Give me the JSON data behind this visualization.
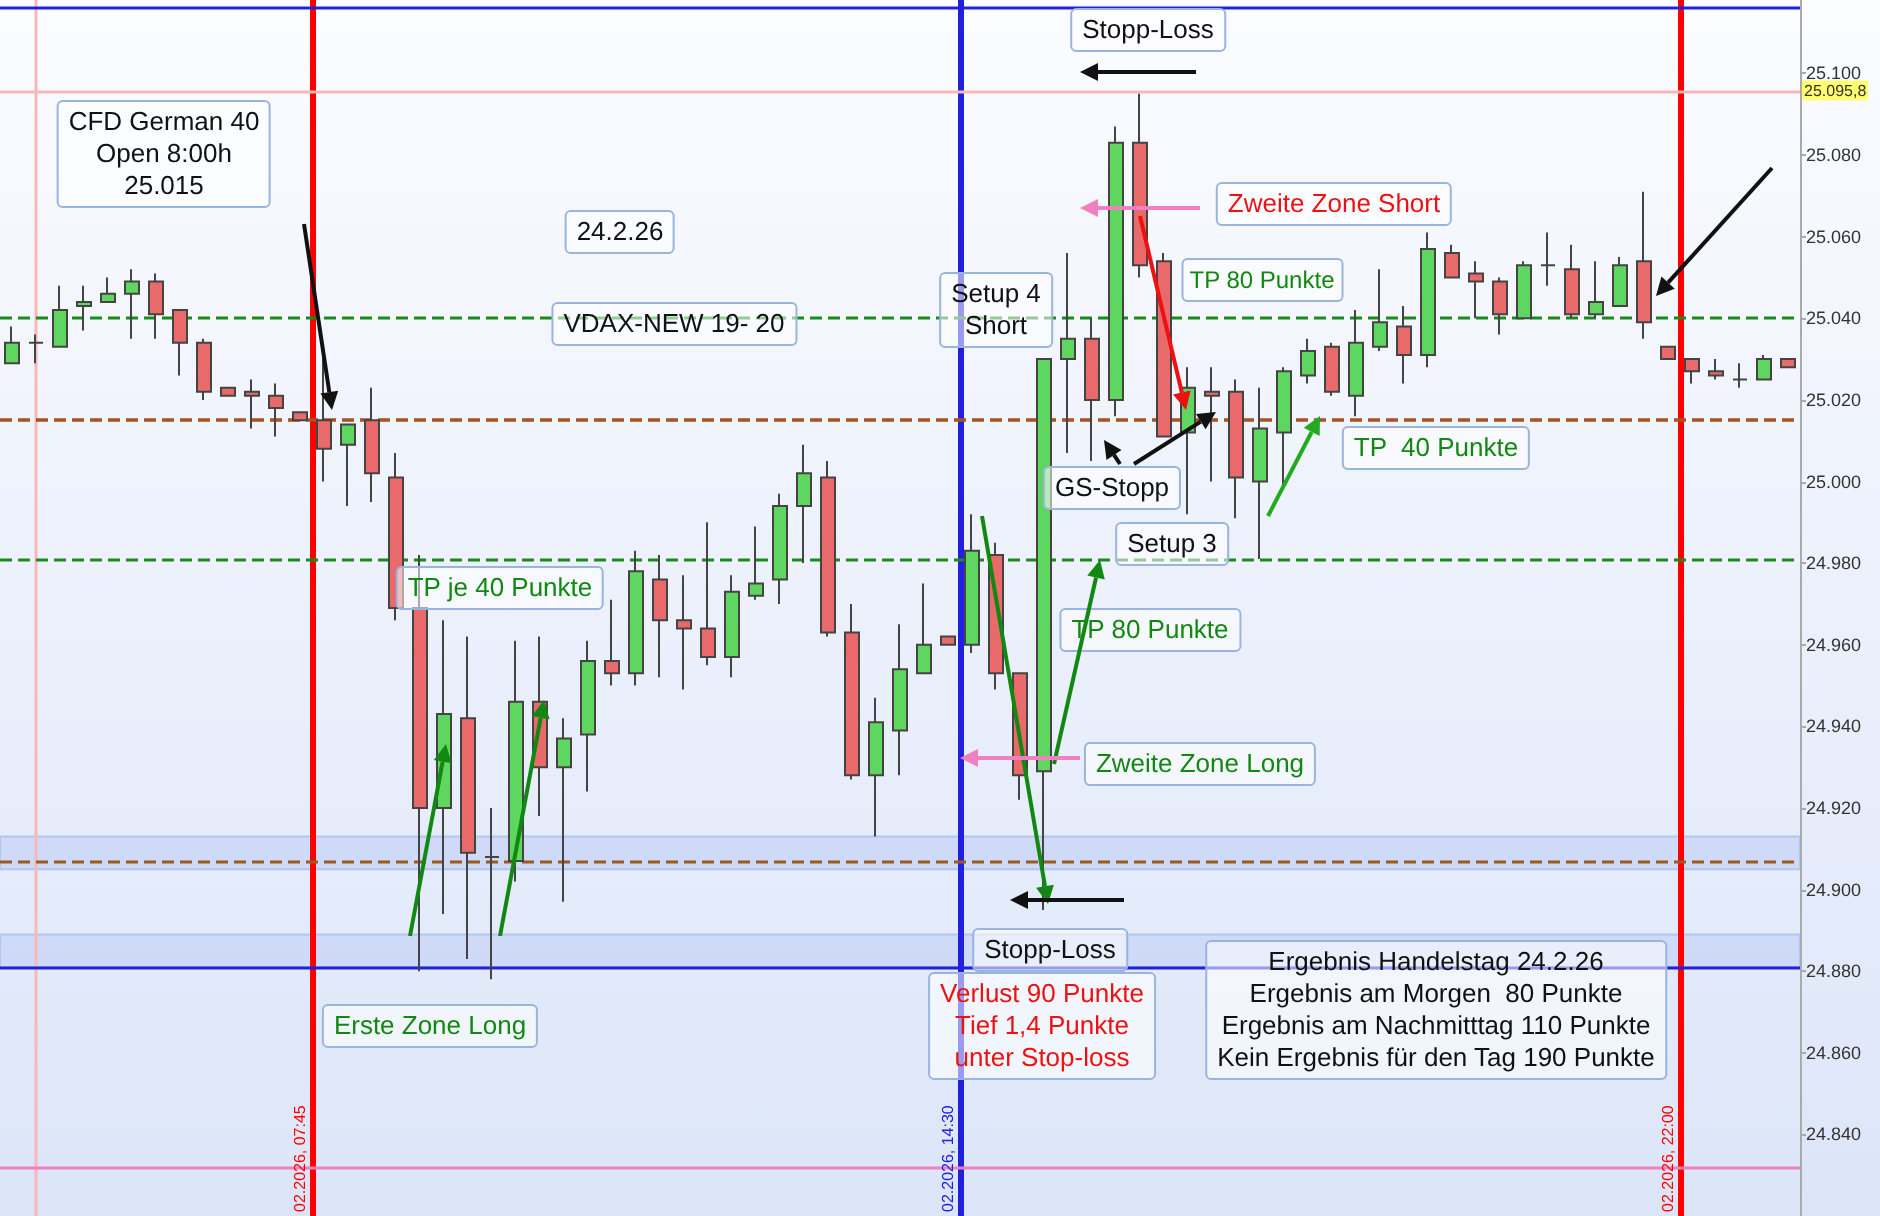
{
  "chart_data": {
    "type": "candlestick",
    "categories": [
      null,
      null,
      null,
      null,
      null,
      null,
      null,
      null,
      null,
      null,
      null,
      null,
      null,
      null,
      null,
      null,
      null,
      null,
      null,
      null,
      null,
      null,
      null,
      null,
      null,
      null,
      null,
      null,
      null,
      null,
      null,
      null,
      null,
      null,
      null,
      null,
      null,
      null,
      null,
      null,
      null,
      null,
      null,
      null,
      null,
      null,
      null,
      null,
      null,
      null,
      null,
      null,
      null,
      null,
      null,
      null,
      null,
      null,
      null,
      null,
      null,
      null,
      null,
      null,
      null,
      null,
      null,
      null,
      null,
      null,
      null,
      null,
      null,
      null,
      null
    ],
    "ohlc": [
      [
        25029,
        25038,
        25029,
        25034
      ],
      [
        25034,
        25036,
        25029,
        25034
      ],
      [
        25033,
        25048,
        25033,
        25042
      ],
      [
        25043,
        25048,
        25037,
        25044
      ],
      [
        25044,
        25050,
        25044,
        25046
      ],
      [
        25046,
        25052,
        25035,
        25049
      ],
      [
        25049,
        25051,
        25035,
        25041
      ],
      [
        25042,
        25042,
        25026,
        25034
      ],
      [
        25034,
        25035,
        25020,
        25022
      ],
      [
        25023,
        25023,
        25021,
        25021
      ],
      [
        25022,
        25025,
        25013,
        25021
      ],
      [
        25021,
        25024,
        25011,
        25018
      ],
      [
        25017,
        25017,
        25015,
        25015
      ],
      [
        25015,
        25033,
        25000,
        25008
      ],
      [
        25009,
        25014,
        24994,
        25014
      ],
      [
        25015,
        25023,
        24995,
        25002
      ],
      [
        25001,
        25007,
        24966,
        24969
      ],
      [
        24969,
        24982,
        24880,
        24920
      ],
      [
        24920,
        24966,
        24894,
        24943
      ],
      [
        24942,
        24962,
        24883,
        24909
      ],
      [
        24908,
        24920,
        24878,
        24908
      ],
      [
        24907,
        24961,
        24902,
        24946
      ],
      [
        24946,
        24962,
        24918,
        24930
      ],
      [
        24930,
        24942,
        24897,
        24937
      ],
      [
        24938,
        24961,
        24924,
        24956
      ],
      [
        24956,
        24971,
        24950,
        24953
      ],
      [
        24953,
        24983,
        24950,
        24978
      ],
      [
        24976,
        24982,
        24952,
        24966
      ],
      [
        24966,
        24977,
        24949,
        24964
      ],
      [
        24964,
        24990,
        24955,
        24957
      ],
      [
        24957,
        24977,
        24952,
        24973
      ],
      [
        24972,
        24989,
        24971,
        24975
      ],
      [
        24976,
        24997,
        24970,
        24994
      ],
      [
        24994,
        25009,
        24980,
        25002
      ],
      [
        25001,
        25005,
        24962,
        24963
      ],
      [
        24963,
        24970,
        24927,
        24928
      ],
      [
        24928,
        24947,
        24913,
        24941
      ],
      [
        24939,
        24965,
        24928,
        24954
      ],
      [
        24953,
        24975,
        24953,
        24960
      ],
      [
        24962,
        24962,
        24960,
        24960
      ],
      [
        24960,
        24992,
        24958,
        24983
      ],
      [
        24982,
        24985,
        24949,
        24953
      ],
      [
        24953,
        24953,
        24922,
        24928
      ],
      [
        24929,
        25030,
        24895,
        25030
      ],
      [
        25030,
        25056,
        25007,
        25035
      ],
      [
        25035,
        25040,
        25005,
        25020
      ],
      [
        25020,
        25087,
        25016,
        25083
      ],
      [
        25083,
        25095,
        25050,
        25053
      ],
      [
        25054,
        25056,
        25011,
        25011
      ],
      [
        25012,
        25028,
        24992,
        25023
      ],
      [
        25022,
        25028,
        25000,
        25021
      ],
      [
        25022,
        25025,
        24991,
        25001
      ],
      [
        25000,
        25023,
        24981,
        25013
      ],
      [
        25012,
        25028,
        24998,
        25027
      ],
      [
        25026,
        25035,
        25024,
        25032
      ],
      [
        25033,
        25034,
        25021,
        25022
      ],
      [
        25021,
        25042,
        25016,
        25034
      ],
      [
        25033,
        25052,
        25032,
        25039
      ],
      [
        25038,
        25043,
        25024,
        25031
      ],
      [
        25031,
        25061,
        25028,
        25057
      ],
      [
        25056,
        25058,
        25050,
        25050
      ],
      [
        25051,
        25054,
        25040,
        25049
      ],
      [
        25049,
        25050,
        25036,
        25041
      ],
      [
        25040,
        25054,
        25040,
        25053
      ],
      [
        25053,
        25061,
        25048,
        25053
      ],
      [
        25052,
        25058,
        25040,
        25041
      ],
      [
        25041,
        25054,
        25040,
        25044
      ],
      [
        25043,
        25055,
        25043,
        25053
      ],
      [
        25054,
        25071,
        25035,
        25039
      ],
      [
        25033,
        25033,
        25030,
        25030
      ],
      [
        25030,
        25030,
        25024,
        25027
      ],
      [
        25027,
        25030,
        25025,
        25026
      ],
      [
        25025,
        25029,
        25023,
        25025
      ],
      [
        25025,
        25031,
        25025,
        25030
      ],
      [
        25030,
        25030,
        25028,
        25028
      ]
    ],
    "ylim": [
      24820,
      25118
    ],
    "yticks": [
      {
        "value": 24840,
        "label": "24.840"
      },
      {
        "value": 24860,
        "label": "24.860"
      },
      {
        "value": 24880,
        "label": "24.880"
      },
      {
        "value": 24900,
        "label": "24.900"
      },
      {
        "value": 24920,
        "label": "24.920"
      },
      {
        "value": 24940,
        "label": "24.940"
      },
      {
        "value": 24960,
        "label": "24.960"
      },
      {
        "value": 24980,
        "label": "24.980"
      },
      {
        "value": 25000,
        "label": "25.000"
      },
      {
        "value": 25020,
        "label": "25.020"
      },
      {
        "value": 25040,
        "label": "25.040"
      },
      {
        "value": 25060,
        "label": "25.060"
      },
      {
        "value": 25080,
        "label": "25.080"
      },
      {
        "value": 25100,
        "label": "25.100"
      }
    ],
    "tick_labels": "y",
    "grid": false,
    "ref_lines": [
      {
        "axis": "x",
        "label": "02.2026, 07:45",
        "color": "#ff0000",
        "line_style": "solid"
      },
      {
        "axis": "x",
        "label": "02.2026, 14:30",
        "color": "#2020dd",
        "line_style": "solid"
      },
      {
        "axis": "x",
        "label": "02.2026, 22:00",
        "color": "#ff0000",
        "line_style": "solid"
      },
      {
        "axis": "x",
        "label": null,
        "color": "#f8b8b8",
        "line_style": "solid"
      },
      {
        "axis": "y",
        "value": 25095.8,
        "label": "25.095,8",
        "color": "#f8b8b8",
        "line_style": "solid"
      },
      {
        "axis": "y",
        "value": 25116,
        "label": null,
        "color": "#2020dd",
        "line_style": "solid"
      },
      {
        "axis": "y",
        "value": 24881,
        "label": null,
        "color": "#2020dd",
        "line_style": "solid"
      },
      {
        "axis": "y",
        "value": 25015,
        "label": null,
        "color": "#ee2020",
        "line_style": "dashed"
      },
      {
        "axis": "y",
        "value": 25015,
        "label": null,
        "color": "#9a5a20",
        "line_style": "dashed"
      },
      {
        "axis": "y",
        "value": 24981,
        "label": null,
        "color": "#1a8a1a",
        "line_style": "dashed"
      },
      {
        "axis": "y",
        "value": 24907,
        "label": null,
        "color": "#9a5a20",
        "line_style": "dashed"
      },
      {
        "axis": "y",
        "value": 25040,
        "label": null,
        "color": "#1a8a1a",
        "line_style": "dashed"
      },
      {
        "axis": "y",
        "value": 24832,
        "label": null,
        "color": "#f080c0",
        "line_style": "solid"
      }
    ],
    "bands": [
      {
        "axis": "y",
        "from": 24881,
        "to": 24889,
        "label": null,
        "color": "#c8d6f6"
      },
      {
        "axis": "y",
        "from": 24905,
        "to": 24913,
        "label": null,
        "color": "#c8d6f6"
      }
    ],
    "annotations": [
      "CFD German 40\nOpen 8:00h\n25.015",
      "24.2.26",
      "VDAX-NEW 19- 20",
      "TP je 40 Punkte",
      "Setup 4\nShort",
      "Stopp-Loss",
      "Zweite Zone Short",
      "TP 80 Punkte",
      "GS-Stopp",
      "Setup 3",
      "TP  40 Punkte",
      "TP 80 Punkte",
      "Zweite Zone Long",
      "Stopp-Loss",
      "Verlust 90 Punkte\nTief 1,4 Punkte\nunter Stop-loss",
      "Erste Zone Long",
      "Ergebnis Handelstag 24.2.26\nErgebnis am Morgen  80 Punkte\nErgebnis am Nachmitttag 110 Punkte\nKein Ergebnis für den Tag 190 Punkte"
    ]
  }
}
